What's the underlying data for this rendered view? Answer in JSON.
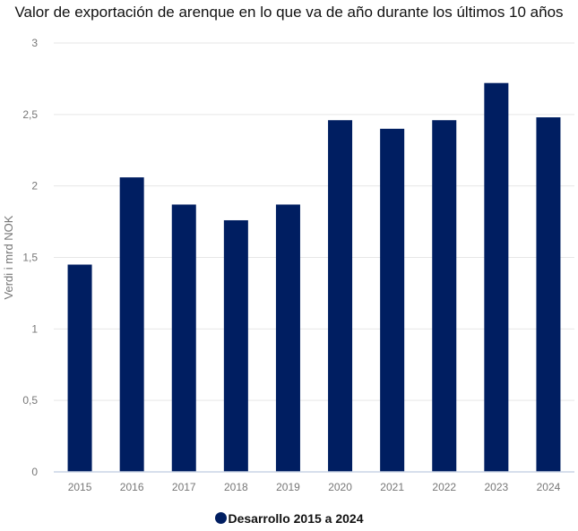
{
  "colors": {
    "bar": "#001e61",
    "grid": "#e6e6e6",
    "axis_text": "#777777",
    "baseline": "#c9d3e6"
  },
  "chart_data": {
    "type": "bar",
    "title": "Valor de exportación de arenque en lo que va de año durante los últimos 10 años",
    "xlabel": "",
    "ylabel": "Verdi i mrd NOK",
    "categories": [
      "2015",
      "2016",
      "2017",
      "2018",
      "2019",
      "2020",
      "2021",
      "2022",
      "2023",
      "2024"
    ],
    "series": [
      {
        "name": "Desarrollo 2015 a 2024",
        "values": [
          1.45,
          2.06,
          1.87,
          1.76,
          1.87,
          2.46,
          2.4,
          2.46,
          2.72,
          2.48
        ]
      }
    ],
    "ylim": [
      0,
      3
    ],
    "yticks": [
      0,
      0.5,
      1,
      1.5,
      2,
      2.5,
      3
    ],
    "ytick_labels": [
      "0",
      "0,5",
      "1",
      "1,5",
      "2",
      "2,5",
      "3"
    ],
    "grid": true,
    "legend_position": "bottom"
  }
}
